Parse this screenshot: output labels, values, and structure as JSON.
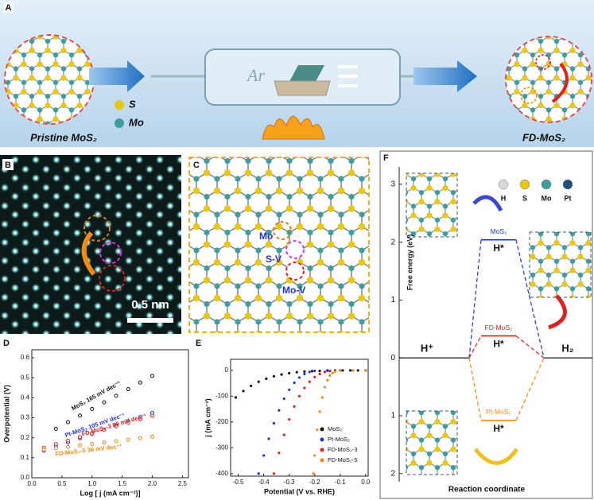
{
  "panel_labels": [
    "A",
    "B",
    "C",
    "D",
    "E",
    "F"
  ],
  "panel_a": {
    "legend": [
      {
        "name": "S",
        "color": "#e8c814"
      },
      {
        "name": "Mo",
        "color": "#3f9d9c"
      }
    ],
    "left_label": "Pristine MoS₂",
    "gas": "Ar",
    "right_label": "FD-MoS₂"
  },
  "panel_b": {
    "scale_bar": "0.5 nm"
  },
  "panel_c": {
    "labels": [
      "Mo",
      "S-V",
      "Mo-V"
    ]
  },
  "chart_data": [
    {
      "type": "line",
      "xlabel": "Log [ j (mA cm⁻²)]",
      "ylabel": "Overpotential (V)",
      "xlim": [
        0,
        2.6
      ],
      "ylim": [
        0,
        0.64
      ],
      "xticks": [
        {
          "value": 0,
          "label": "0.0"
        },
        0.5,
        {
          "value": 1,
          "label": "1.0"
        },
        1.5,
        {
          "value": 2,
          "label": "2.0"
        },
        2.5
      ],
      "yticks": [
        {
          "value": 0,
          "label": "0.0"
        },
        0.1,
        0.2,
        0.3,
        0.4,
        0.5,
        0.6
      ],
      "series": [
        {
          "name": "MoS₂ 165 mV dec⁻¹",
          "color": "#111111",
          "x": [
            0.4,
            0.6,
            0.8,
            1.0,
            1.2,
            1.4,
            1.6,
            1.8,
            2.0
          ],
          "values": [
            0.245,
            0.278,
            0.311,
            0.344,
            0.377,
            0.41,
            0.443,
            0.476,
            0.509
          ]
        },
        {
          "name": "Pt-MoS₂ 105 mV dec⁻¹",
          "color": "#1f2fe0",
          "x": [
            0.2,
            0.4,
            0.6,
            0.8,
            1.0,
            1.2,
            1.4,
            1.6,
            1.8,
            2.0
          ],
          "values": [
            0.135,
            0.156,
            0.177,
            0.198,
            0.219,
            0.24,
            0.261,
            0.282,
            0.303,
            0.324
          ]
        },
        {
          "name": "FD-MoS₂-3 89 mV dec⁻¹",
          "color": "#e02020",
          "x": [
            0.2,
            0.4,
            0.6,
            0.8,
            1.0,
            1.2,
            1.4,
            1.6,
            1.8,
            2.0
          ],
          "values": [
            0.15,
            0.168,
            0.186,
            0.203,
            0.221,
            0.239,
            0.257,
            0.275,
            0.292,
            0.31
          ]
        },
        {
          "name": "FD-MoS₂-5 36 mV dec⁻¹",
          "color": "#f08a10",
          "x": [
            0.2,
            0.4,
            0.6,
            0.8,
            1.0,
            1.2,
            1.4,
            1.6,
            1.8,
            2.0
          ],
          "values": [
            0.14,
            0.147,
            0.154,
            0.162,
            0.169,
            0.176,
            0.183,
            0.19,
            0.198,
            0.205
          ]
        }
      ]
    },
    {
      "type": "scatter",
      "xlabel": "Potential (V vs. RHE)",
      "ylabel": "j (mA cm⁻²)",
      "xlim": [
        -0.53,
        0.01
      ],
      "ylim": [
        -410,
        43
      ],
      "xticks": [
        -0.5,
        -0.4,
        -0.3,
        -0.2,
        -0.1,
        {
          "value": 0,
          "label": "0.0"
        }
      ],
      "yticks": [
        0,
        -100,
        -200,
        -300,
        -400
      ],
      "series": [
        {
          "name": "MoS₂",
          "color": "#111111",
          "x": [
            -0.51,
            -0.48,
            -0.45,
            -0.42,
            -0.39,
            -0.36,
            -0.33,
            -0.3,
            -0.27,
            -0.24,
            -0.21,
            -0.18,
            -0.15,
            -0.12,
            -0.09,
            -0.06,
            -0.03,
            0.0
          ],
          "values": [
            -105,
            -80,
            -60,
            -44,
            -32,
            -23,
            -16,
            -11,
            -7,
            -4.5,
            -3,
            -2,
            -1,
            -0.5,
            0,
            0,
            0,
            0
          ]
        },
        {
          "name": "Pt-MoS₂",
          "color": "#1f2fe0",
          "x": [
            -0.42,
            -0.4,
            -0.38,
            -0.36,
            -0.34,
            -0.32,
            -0.3,
            -0.28,
            -0.26,
            -0.24,
            -0.22,
            -0.2,
            -0.15,
            -0.1,
            -0.05,
            0.0
          ],
          "values": [
            -400,
            -330,
            -265,
            -205,
            -155,
            -110,
            -75,
            -48,
            -28,
            -14,
            -6,
            -2,
            0,
            0,
            0,
            0
          ]
        },
        {
          "name": "FD-MoS₂-3",
          "color": "#e02020",
          "x": [
            -0.36,
            -0.34,
            -0.32,
            -0.3,
            -0.28,
            -0.26,
            -0.24,
            -0.22,
            -0.2,
            -0.18,
            -0.16,
            -0.14,
            -0.1,
            -0.05,
            0.0
          ],
          "values": [
            -400,
            -320,
            -250,
            -190,
            -140,
            -100,
            -68,
            -44,
            -26,
            -14,
            -6,
            -2,
            0,
            0,
            0
          ]
        },
        {
          "name": "FD-MoS₂-5",
          "color": "#f08a10",
          "x": [
            -0.205,
            -0.2,
            -0.19,
            -0.18,
            -0.17,
            -0.16,
            -0.15,
            -0.14,
            -0.13,
            -0.12,
            -0.1,
            -0.05,
            0.0
          ],
          "values": [
            -400,
            -330,
            -230,
            -160,
            -105,
            -65,
            -38,
            -20,
            -10,
            -4,
            -1,
            0,
            0
          ]
        }
      ]
    },
    {
      "type": "energy",
      "xlabel": "Reaction coordinate",
      "ylabel": "Free energy (eV)",
      "ylim": [
        -2.14,
        3.3
      ],
      "yticks": [
        3,
        2,
        1,
        0,
        {
          "value": -1,
          "label": "1"
        },
        {
          "value": -2,
          "label": "2"
        }
      ],
      "states": [
        "H⁺",
        "H*",
        "H₂"
      ],
      "legend": [
        {
          "name": "H",
          "color": "#d8d8d8"
        },
        {
          "name": "S",
          "color": "#e8c814"
        },
        {
          "name": "Mo",
          "color": "#3f9d9c"
        },
        {
          "name": "Pt",
          "color": "#1d4f7a"
        }
      ],
      "series": [
        {
          "name": "MoS₂",
          "color": "#2233cc",
          "values": [
            0,
            2.04,
            0
          ]
        },
        {
          "name": "FD-MoS₂",
          "color": "#dd2020",
          "values": [
            0,
            0.38,
            0
          ]
        },
        {
          "name": "Pt-MoS₂",
          "color": "#f08a10",
          "values": [
            0,
            -1.08,
            0
          ]
        }
      ]
    }
  ]
}
